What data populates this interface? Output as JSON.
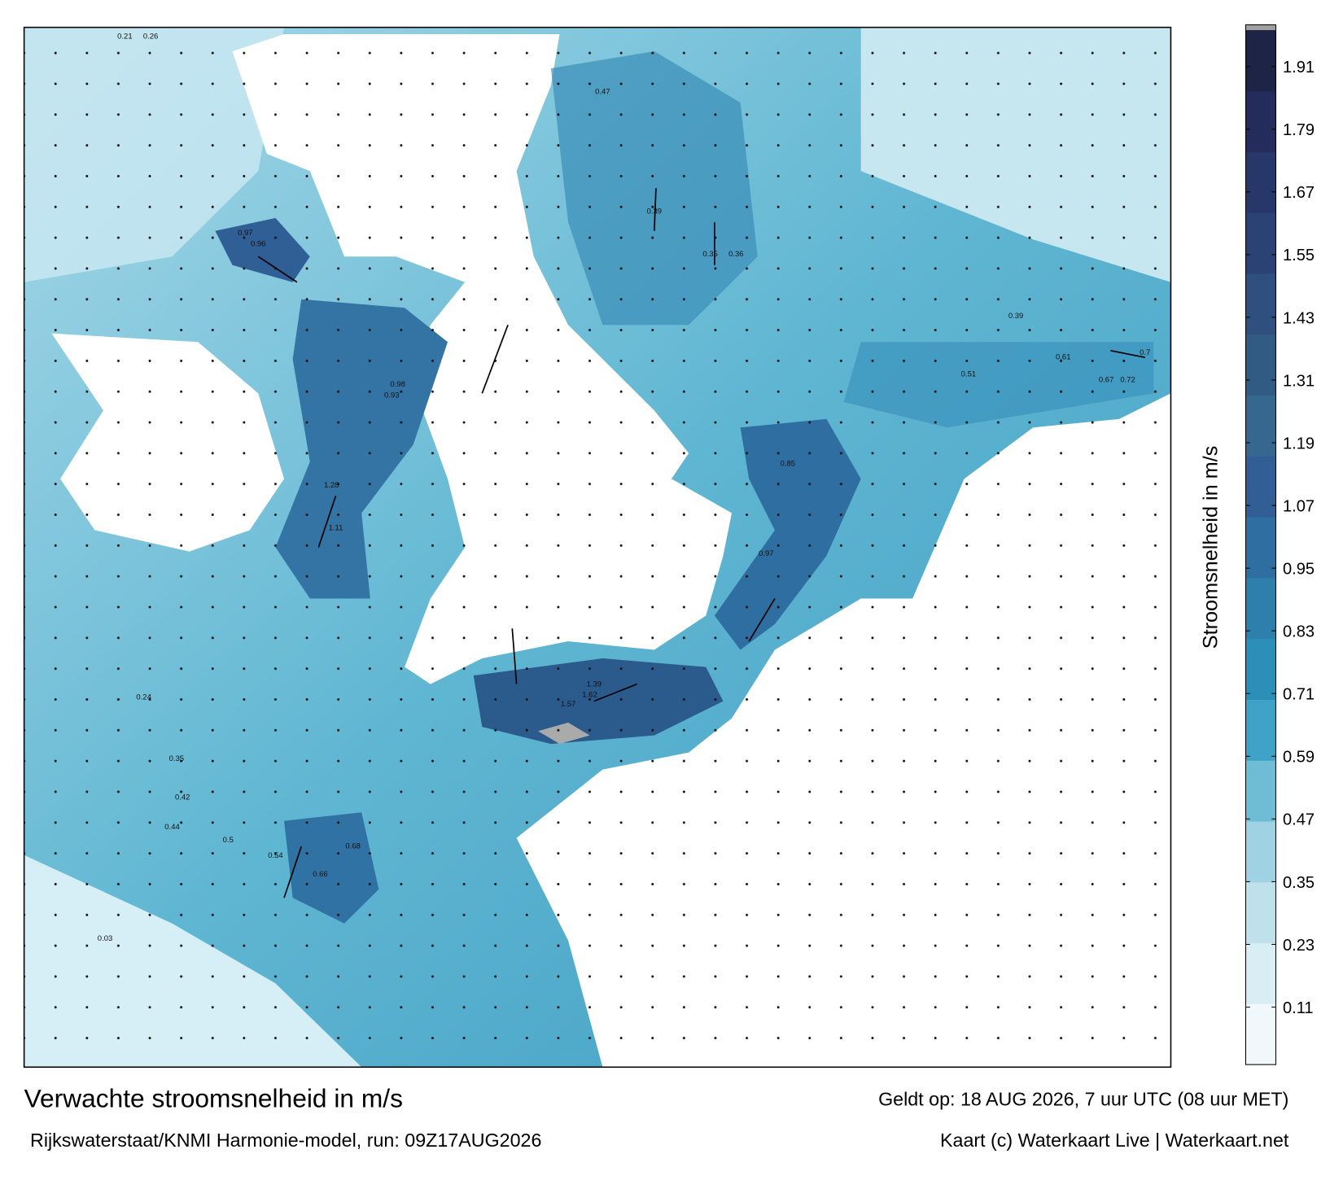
{
  "title": "Verwachte stroomsnelheid in m/s",
  "subtitle": "Rijkswaterstaat/KNMI Harmonie-model, run: 09Z17AUG2026",
  "valid_time": "Geldt op: 18 AUG 2026, 7 uur UTC (08 uur MET)",
  "credit": "Kaart (c) Waterkaart Live | Waterkaart.net",
  "colorbar": {
    "label": "Stroomsnelheid in m/s",
    "lim": [
      0,
      1.98
    ],
    "ticks": [
      0.11,
      0.23,
      0.35,
      0.47,
      0.59,
      0.71,
      0.83,
      0.95,
      1.07,
      1.19,
      1.31,
      1.43,
      1.55,
      1.67,
      1.79,
      1.91
    ],
    "colors": [
      "#f1f8fb",
      "#d9edf4",
      "#bfe1ec",
      "#9fd2e3",
      "#6fbcd6",
      "#3ea3c6",
      "#2b8fb7",
      "#2e7fab",
      "#2f6ea0",
      "#315f95",
      "#36688f",
      "#315b82",
      "#2f4f7e",
      "#2b4374",
      "#28376a",
      "#232c5a",
      "#1e2446"
    ]
  },
  "map_labels": [
    "1.28",
    "1.11",
    "1.62",
    "1.57",
    "1.39",
    "0.97",
    "0.85",
    "0.7",
    "0.72",
    "0.67",
    "0.61",
    "0.51",
    "0.39",
    "0.47",
    "0.39",
    "0.35",
    "0.36",
    "0.97",
    "0.96",
    "0.93",
    "0.98",
    "0.66",
    "0.68",
    "0.54",
    "0.5",
    "0.44",
    "0.42",
    "0.35",
    "0.24",
    "0.21",
    "0.26",
    "0.03"
  ]
}
